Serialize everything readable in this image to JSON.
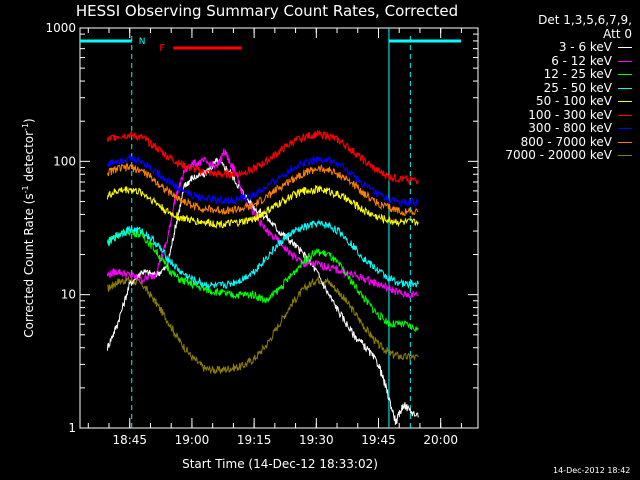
{
  "header": {
    "title": "HESSI Observing Summary Count Rates, Corrected"
  },
  "legend": {
    "head_line1": "Det 1,3,5,6,7,9,",
    "head_line2": "Att 0",
    "entries": [
      {
        "label": "3 - 6 keV",
        "color": "#ffffff"
      },
      {
        "label": "6 - 12 keV",
        "color": "#ff00ff"
      },
      {
        "label": "12 - 25 keV",
        "color": "#00ff00"
      },
      {
        "label": "25 - 50 keV",
        "color": "#00ffff"
      },
      {
        "label": "50 - 100 keV",
        "color": "#ffff00"
      },
      {
        "label": "100 - 300 keV",
        "color": "#ff0000"
      },
      {
        "label": "300 - 800 keV",
        "color": "#0000ff"
      },
      {
        "label": "800 - 7000 keV",
        "color": "#ff8000"
      },
      {
        "label": "7000 - 20000 keV",
        "color": "#8b7d00"
      }
    ]
  },
  "footer": {
    "stamp": "14-Dec-2012 18:42"
  },
  "chart_data": {
    "type": "line",
    "title": "HESSI Observing Summary Count Rates, Corrected",
    "xlabel": "Start Time (14-Dec-12 18:33:02)",
    "ylabel_main": "Corrected Count Rate (s",
    "ylabel_sup1": "-1",
    "ylabel_mid": " detector",
    "ylabel_sup2": "-1",
    "ylabel_end": ")",
    "y_scale": "log",
    "ylim": [
      1,
      1000
    ],
    "xlim_minutes": [
      18.55,
      20.15
    ],
    "x_tick_labels": [
      "18:45",
      "19:00",
      "19:15",
      "19:30",
      "19:45",
      "20:00"
    ],
    "x_tick_hours": [
      18.75,
      19.0,
      19.25,
      19.5,
      19.75,
      20.0
    ],
    "y_tick_labels": [
      "1",
      "10",
      "100",
      "1000"
    ],
    "y_tick_values": [
      1,
      10,
      100,
      1000
    ],
    "series": [
      {
        "name": "7000 - 20000 keV",
        "color": "#8b7d00",
        "x": [
          18.66,
          18.7,
          18.75,
          18.8,
          18.85,
          18.9,
          18.95,
          19.0,
          19.05,
          19.1,
          19.15,
          19.2,
          19.25,
          19.3,
          19.35,
          19.4,
          19.45,
          19.5,
          19.55,
          19.6,
          19.65,
          19.7,
          19.75,
          19.8,
          19.85,
          19.91
        ],
        "y": [
          11,
          12.5,
          13,
          12,
          9,
          6.5,
          4.5,
          3.4,
          2.8,
          2.7,
          2.8,
          2.9,
          3.3,
          4.2,
          6,
          8.5,
          11,
          13,
          12.5,
          10,
          7.5,
          5.5,
          4.2,
          3.6,
          3.4,
          3.4
        ]
      },
      {
        "name": "3 - 6 keV",
        "color": "#ffffff",
        "x": [
          18.66,
          18.7,
          18.75,
          18.8,
          18.85,
          18.9,
          18.93,
          18.97,
          19.0,
          19.05,
          19.1,
          19.15,
          19.2,
          19.25,
          19.3,
          19.35,
          19.4,
          19.45,
          19.5,
          19.55,
          19.6,
          19.65,
          19.7,
          19.75,
          19.78,
          19.82,
          19.85,
          19.91
        ],
        "y": [
          4,
          6,
          12,
          15,
          14,
          16,
          30,
          65,
          75,
          80,
          100,
          85,
          60,
          45,
          38,
          30,
          25,
          20,
          15,
          10,
          7,
          5,
          4,
          3,
          2,
          1.1,
          1.5,
          1.2
        ]
      },
      {
        "name": "6 - 12 keV",
        "color": "#ff00ff",
        "x": [
          18.66,
          18.7,
          18.75,
          18.8,
          18.85,
          18.9,
          18.93,
          18.97,
          19.0,
          19.05,
          19.1,
          19.13,
          19.15,
          19.18,
          19.2,
          19.25,
          19.3,
          19.35,
          19.4,
          19.45,
          19.5,
          19.55,
          19.6,
          19.65,
          19.7,
          19.75,
          19.8,
          19.85,
          19.91
        ],
        "y": [
          14,
          15,
          14,
          13,
          14,
          25,
          50,
          85,
          95,
          100,
          90,
          120,
          100,
          80,
          60,
          40,
          30,
          25,
          20,
          17,
          17,
          16,
          15,
          14,
          13,
          12,
          11,
          10,
          10
        ]
      },
      {
        "name": "12 - 25 keV",
        "color": "#00ff00",
        "x": [
          18.66,
          18.7,
          18.75,
          18.8,
          18.85,
          18.9,
          18.95,
          19.0,
          19.05,
          19.1,
          19.15,
          19.2,
          19.25,
          19.3,
          19.35,
          19.4,
          19.45,
          19.5,
          19.55,
          19.6,
          19.65,
          19.7,
          19.75,
          19.8,
          19.85,
          19.91
        ],
        "y": [
          25,
          28,
          30,
          28,
          22,
          16,
          13,
          12,
          11,
          10.5,
          10,
          10,
          10,
          9,
          11,
          14,
          18,
          21,
          20,
          16,
          12,
          9,
          7,
          6,
          6,
          5.5
        ]
      },
      {
        "name": "25 - 50 keV",
        "color": "#00ffff",
        "x": [
          18.66,
          18.7,
          18.75,
          18.8,
          18.85,
          18.9,
          18.95,
          19.0,
          19.05,
          19.1,
          19.15,
          19.2,
          19.25,
          19.3,
          19.35,
          19.4,
          19.45,
          19.5,
          19.55,
          19.6,
          19.65,
          19.7,
          19.75,
          19.8,
          19.85,
          19.91
        ],
        "y": [
          24,
          28,
          31,
          30,
          25,
          19,
          15,
          13,
          12,
          11.5,
          12,
          13,
          15,
          19,
          24,
          29,
          32,
          34,
          33,
          29,
          23,
          18,
          15,
          13,
          12,
          12
        ]
      },
      {
        "name": "50 - 100 keV",
        "color": "#ffff00",
        "x": [
          18.66,
          18.7,
          18.75,
          18.8,
          18.85,
          18.9,
          18.95,
          19.0,
          19.05,
          19.1,
          19.15,
          19.2,
          19.25,
          19.3,
          19.35,
          19.4,
          19.45,
          19.5,
          19.55,
          19.6,
          19.65,
          19.7,
          19.75,
          19.8,
          19.85,
          19.91
        ],
        "y": [
          55,
          60,
          62,
          58,
          50,
          42,
          38,
          36,
          35,
          34,
          34,
          35,
          37,
          42,
          48,
          55,
          60,
          62,
          60,
          55,
          48,
          42,
          38,
          36,
          35,
          35
        ]
      },
      {
        "name": "800 - 7000 keV",
        "color": "#ff8000",
        "x": [
          18.66,
          18.7,
          18.75,
          18.8,
          18.85,
          18.9,
          18.95,
          19.0,
          19.05,
          19.1,
          19.15,
          19.2,
          19.25,
          19.3,
          19.35,
          19.4,
          19.45,
          19.5,
          19.55,
          19.6,
          19.65,
          19.7,
          19.75,
          19.8,
          19.85,
          19.91
        ],
        "y": [
          82,
          88,
          90,
          85,
          72,
          60,
          52,
          47,
          44,
          43,
          43,
          44,
          47,
          54,
          63,
          73,
          82,
          88,
          86,
          78,
          67,
          56,
          48,
          44,
          42,
          42
        ]
      },
      {
        "name": "300 - 800 keV",
        "color": "#0000ff",
        "x": [
          18.66,
          18.7,
          18.75,
          18.8,
          18.85,
          18.9,
          18.95,
          19.0,
          19.05,
          19.1,
          19.15,
          19.2,
          19.25,
          19.3,
          19.35,
          19.4,
          19.45,
          19.5,
          19.55,
          19.6,
          19.65,
          19.7,
          19.75,
          19.8,
          19.85,
          19.91
        ],
        "y": [
          95,
          102,
          105,
          100,
          85,
          72,
          62,
          56,
          53,
          51,
          51,
          52,
          56,
          64,
          75,
          88,
          98,
          104,
          102,
          92,
          78,
          65,
          56,
          51,
          49,
          49
        ]
      },
      {
        "name": "100 - 300 keV",
        "color": "#ff0000",
        "x": [
          18.66,
          18.7,
          18.75,
          18.8,
          18.85,
          18.9,
          18.95,
          19.0,
          19.05,
          19.1,
          19.15,
          19.2,
          19.25,
          19.3,
          19.35,
          19.4,
          19.45,
          19.5,
          19.55,
          19.6,
          19.65,
          19.7,
          19.75,
          19.8,
          19.85,
          19.91
        ],
        "y": [
          145,
          155,
          158,
          150,
          130,
          110,
          96,
          88,
          83,
          80,
          80,
          82,
          88,
          100,
          118,
          138,
          152,
          160,
          155,
          140,
          118,
          98,
          84,
          76,
          73,
          72
        ]
      }
    ],
    "annotations": {
      "n_label": "N",
      "f_label": "F",
      "night_start_hour": 18.758,
      "night_end_hour": 19.878,
      "day_start_hour": 19.792,
      "flare_start_hour": 18.925,
      "flare_end_hour": 19.2
    }
  }
}
